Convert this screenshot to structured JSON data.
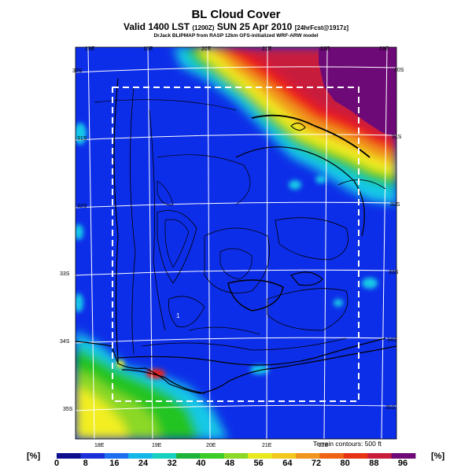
{
  "header": {
    "title": "BL Cloud Cover",
    "subtitle_main": "Valid 1400 LST",
    "subtitle_small1": "(1200Z)",
    "subtitle_date": "SUN 25 Apr 2010",
    "subtitle_small2": "[24hrFcst@1917z]",
    "credit": "DrJack BLIPMAP from RASP 12km GFS-initialized WRF-ARW model"
  },
  "map": {
    "lon_labels_top": [
      "18E",
      "19E",
      "20E",
      "21E",
      "22E",
      "23E"
    ],
    "lon_labels_bottom": [
      "18E",
      "19E",
      "20E",
      "21E",
      "22E"
    ],
    "lat_labels_left": [
      "30S",
      "31S",
      "32S",
      "33S",
      "34S",
      "35S"
    ],
    "lat_labels_right": [
      "30S",
      "31S",
      "32S",
      "33S",
      "34S",
      "35S"
    ],
    "point_label": "1",
    "terrain_note": "Terrain contours: 500 ft",
    "colors": {
      "background_blue": "#0d2ee8",
      "deep_purple": "#6e0a78",
      "red": "#ee1c12",
      "yellow": "#f2ee20",
      "green": "#20c420",
      "cyan": "#14c8e8"
    }
  },
  "colorbar": {
    "unit_left": "[%]",
    "unit_right": "[%]",
    "ticks": [
      "0",
      "8",
      "16",
      "24",
      "32",
      "40",
      "48",
      "56",
      "64",
      "72",
      "80",
      "88",
      "96"
    ],
    "colors": [
      "#0d0f8c",
      "#1a2fd8",
      "#1e6ef0",
      "#14b8e8",
      "#18d0c0",
      "#1eb43c",
      "#3ccc28",
      "#8cd828",
      "#e8e81e",
      "#f2c81e",
      "#f0961e",
      "#ee6414",
      "#e83214",
      "#c81e3c",
      "#6e0a78"
    ]
  }
}
